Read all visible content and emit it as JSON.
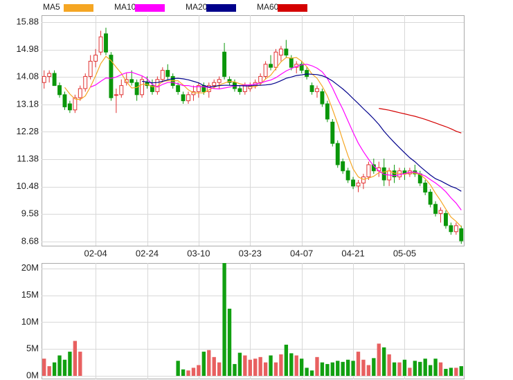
{
  "chart_data": [
    {
      "type": "candlestick",
      "categories": [
        null,
        null,
        null,
        null,
        null,
        null,
        null,
        null,
        null,
        null,
        "02-04",
        null,
        null,
        null,
        null,
        null,
        null,
        null,
        null,
        null,
        "02-24",
        null,
        null,
        null,
        null,
        null,
        null,
        null,
        null,
        null,
        "03-10",
        null,
        null,
        null,
        null,
        null,
        null,
        null,
        null,
        null,
        "03-23",
        null,
        null,
        null,
        null,
        null,
        null,
        null,
        null,
        null,
        "04-07",
        null,
        null,
        null,
        null,
        null,
        null,
        null,
        null,
        null,
        "04-21",
        null,
        null,
        null,
        null,
        null,
        null,
        null,
        null,
        null,
        "05-05",
        null,
        null,
        null,
        null,
        null,
        null,
        null,
        null,
        null,
        null,
        null
      ],
      "open": [
        13.9,
        14.1,
        14.2,
        13.8,
        13.5,
        13.2,
        13.0,
        13.4,
        13.7,
        14.1,
        14.6,
        14.9,
        15.5,
        14.8,
        13.5,
        13.5,
        13.9,
        14.0,
        13.9,
        13.5,
        13.9,
        13.8,
        13.6,
        14.0,
        14.3,
        14.1,
        13.8,
        13.5,
        13.3,
        13.5,
        13.6,
        13.8,
        13.6,
        13.8,
        13.9,
        14.9,
        14.0,
        13.9,
        13.7,
        13.6,
        13.7,
        13.8,
        13.9,
        14.1,
        14.5,
        14.4,
        14.8,
        15.0,
        14.7,
        14.4,
        14.5,
        14.3,
        13.8,
        13.6,
        13.6,
        13.2,
        12.6,
        11.9,
        11.3,
        11.0,
        10.7,
        10.5,
        10.6,
        10.8,
        11.2,
        11.0,
        11.1,
        10.7,
        11.0,
        10.8,
        11.0,
        10.9,
        11.0,
        10.9,
        10.6,
        10.3,
        9.9,
        9.6,
        9.6,
        9.2,
        9.0,
        9.1
      ],
      "high": [
        14.3,
        14.3,
        14.3,
        13.9,
        13.6,
        13.3,
        13.5,
        13.8,
        14.2,
        14.8,
        15.0,
        15.6,
        15.7,
        14.9,
        13.7,
        14.0,
        14.2,
        14.3,
        14.0,
        14.1,
        14.1,
        14.0,
        14.1,
        14.4,
        14.5,
        14.2,
        13.9,
        13.6,
        13.6,
        13.8,
        13.9,
        13.9,
        13.9,
        14.0,
        14.1,
        15.2,
        14.1,
        14.0,
        13.8,
        13.9,
        13.9,
        14.0,
        14.2,
        14.6,
        14.8,
        15.0,
        15.1,
        15.3,
        14.8,
        14.6,
        14.6,
        14.4,
        13.9,
        13.8,
        13.7,
        13.3,
        12.7,
        12.0,
        11.4,
        11.1,
        10.8,
        10.7,
        10.9,
        11.3,
        11.4,
        11.3,
        11.4,
        11.1,
        11.2,
        11.1,
        11.1,
        11.1,
        11.2,
        11.0,
        10.7,
        10.4,
        10.0,
        9.8,
        9.7,
        9.3,
        9.3,
        9.2
      ],
      "low": [
        13.7,
        13.9,
        13.8,
        13.4,
        13.0,
        12.9,
        12.9,
        13.3,
        13.6,
        14.0,
        14.4,
        14.8,
        14.8,
        13.3,
        12.9,
        13.4,
        13.8,
        13.8,
        13.3,
        13.4,
        13.7,
        13.5,
        13.5,
        13.9,
        14.0,
        13.7,
        13.5,
        13.2,
        13.2,
        13.3,
        13.4,
        13.5,
        13.4,
        13.7,
        13.7,
        14.0,
        13.8,
        13.6,
        13.5,
        13.5,
        13.6,
        13.7,
        13.8,
        14.0,
        14.3,
        14.3,
        14.6,
        14.7,
        14.3,
        14.2,
        14.2,
        14.0,
        13.5,
        13.4,
        13.1,
        12.6,
        11.8,
        11.1,
        10.9,
        10.6,
        10.4,
        10.3,
        10.4,
        10.7,
        10.9,
        10.8,
        10.5,
        10.5,
        10.6,
        10.7,
        10.7,
        10.8,
        10.8,
        10.5,
        10.2,
        9.8,
        9.5,
        9.3,
        9.1,
        8.9,
        8.9,
        8.6
      ],
      "close": [
        14.1,
        14.2,
        13.8,
        13.5,
        13.1,
        13.0,
        13.4,
        13.7,
        14.1,
        14.6,
        14.8,
        15.4,
        14.9,
        13.4,
        13.5,
        13.8,
        14.0,
        13.9,
        13.5,
        14.0,
        13.8,
        13.6,
        14.0,
        14.3,
        14.1,
        13.8,
        13.6,
        13.3,
        13.5,
        13.6,
        13.8,
        13.6,
        13.8,
        13.9,
        14.0,
        14.1,
        13.9,
        13.7,
        13.6,
        13.8,
        13.8,
        13.9,
        14.1,
        14.5,
        14.4,
        14.9,
        15.0,
        14.8,
        14.4,
        14.5,
        14.3,
        14.1,
        13.6,
        13.7,
        13.2,
        12.7,
        11.9,
        11.2,
        11.0,
        10.7,
        10.5,
        10.6,
        10.8,
        11.2,
        11.0,
        11.1,
        10.7,
        11.0,
        10.8,
        11.0,
        10.9,
        11.0,
        10.9,
        10.6,
        10.3,
        9.9,
        9.6,
        9.7,
        9.2,
        9.0,
        9.2,
        8.7
      ],
      "up_color": "#e03030",
      "down_color": "#0a960a",
      "series": [
        {
          "name": "MA5",
          "color": "#f5a623",
          "values": [
            null,
            null,
            null,
            null,
            13.74,
            13.52,
            13.36,
            13.34,
            13.46,
            13.76,
            14.12,
            14.52,
            14.76,
            14.62,
            14.4,
            14.2,
            13.92,
            13.72,
            13.74,
            13.84,
            13.84,
            13.76,
            13.78,
            13.94,
            13.96,
            13.96,
            13.96,
            13.82,
            13.66,
            13.56,
            13.56,
            13.56,
            13.66,
            13.74,
            13.82,
            13.88,
            13.94,
            13.92,
            13.86,
            13.82,
            13.76,
            13.76,
            13.84,
            14.02,
            14.14,
            14.36,
            14.58,
            14.72,
            14.7,
            14.72,
            14.6,
            14.42,
            14.18,
            14.04,
            13.78,
            13.46,
            13.02,
            12.54,
            12.0,
            11.5,
            11.06,
            10.8,
            10.72,
            10.76,
            10.82,
            10.94,
            10.96,
            11.0,
            10.92,
            10.92,
            10.88,
            10.94,
            10.92,
            10.88,
            10.74,
            10.54,
            10.26,
            10.02,
            9.74,
            9.48,
            9.34,
            9.16
          ]
        },
        {
          "name": "MA10",
          "color": "#ff00ff",
          "values": [
            null,
            null,
            null,
            null,
            null,
            null,
            null,
            null,
            null,
            13.75,
            13.82,
            13.94,
            14.05,
            14.04,
            14.08,
            14.16,
            14.22,
            14.24,
            14.18,
            14.12,
            14.02,
            13.84,
            13.75,
            13.84,
            13.9,
            13.9,
            13.86,
            13.8,
            13.8,
            13.76,
            13.76,
            13.76,
            13.74,
            13.7,
            13.69,
            13.72,
            13.75,
            13.79,
            13.8,
            13.82,
            13.82,
            13.85,
            13.88,
            13.94,
            13.98,
            14.06,
            14.17,
            14.28,
            14.36,
            14.43,
            14.48,
            14.5,
            14.45,
            14.37,
            14.25,
            14.03,
            13.72,
            13.36,
            13.02,
            12.64,
            12.26,
            11.91,
            11.63,
            11.38,
            11.16,
            11.0,
            10.88,
            10.86,
            10.84,
            10.87,
            10.91,
            10.95,
            10.96,
            10.9,
            10.83,
            10.71,
            10.6,
            10.47,
            10.31,
            10.11,
            9.94,
            9.71
          ]
        },
        {
          "name": "MA20",
          "color": "#00008b",
          "values": [
            null,
            null,
            null,
            null,
            null,
            null,
            null,
            null,
            null,
            null,
            null,
            null,
            null,
            null,
            null,
            null,
            null,
            null,
            null,
            13.94,
            13.92,
            13.89,
            13.9,
            13.94,
            13.99,
            14.03,
            14.04,
            14.02,
            13.99,
            13.94,
            13.89,
            13.8,
            13.75,
            13.77,
            13.8,
            13.81,
            13.81,
            13.8,
            13.8,
            13.79,
            13.79,
            13.81,
            13.81,
            13.82,
            13.84,
            13.89,
            13.96,
            14.04,
            14.08,
            14.13,
            14.15,
            14.18,
            14.17,
            14.16,
            14.12,
            14.05,
            13.95,
            13.82,
            13.69,
            13.54,
            13.37,
            13.21,
            13.04,
            12.88,
            12.71,
            12.52,
            12.3,
            12.11,
            11.93,
            11.76,
            11.59,
            11.43,
            11.3,
            11.14,
            11.0,
            10.86,
            10.74,
            10.67,
            10.58,
            10.49,
            10.43,
            10.33
          ]
        },
        {
          "name": "MA60",
          "color": "#d40000",
          "values": [
            null,
            null,
            null,
            null,
            null,
            null,
            null,
            null,
            null,
            null,
            null,
            null,
            null,
            null,
            null,
            null,
            null,
            null,
            null,
            null,
            null,
            null,
            null,
            null,
            null,
            null,
            null,
            null,
            null,
            null,
            null,
            null,
            null,
            null,
            null,
            null,
            null,
            null,
            null,
            null,
            null,
            null,
            null,
            null,
            null,
            null,
            null,
            null,
            null,
            null,
            null,
            null,
            null,
            null,
            null,
            null,
            null,
            null,
            null,
            null,
            null,
            null,
            null,
            null,
            null,
            13.05,
            13.02,
            12.99,
            12.95,
            12.91,
            12.87,
            12.83,
            12.79,
            12.74,
            12.69,
            12.63,
            12.57,
            12.51,
            12.45,
            12.38,
            12.3,
            12.24
          ]
        }
      ],
      "ylim": [
        8.54,
        16.11
      ],
      "yticks": [
        15.88,
        14.98,
        14.08,
        13.18,
        12.28,
        11.38,
        10.48,
        9.58,
        8.68
      ],
      "grid": true
    },
    {
      "type": "bar",
      "values": [
        3.2,
        1.8,
        2.5,
        3.8,
        3.0,
        4.5,
        6.5,
        4.5,
        null,
        null,
        null,
        null,
        null,
        null,
        null,
        null,
        null,
        null,
        null,
        null,
        null,
        null,
        null,
        null,
        null,
        null,
        2.8,
        1.2,
        1.0,
        1.5,
        2.0,
        4.5,
        4.8,
        3.5,
        2.5,
        21.0,
        12.5,
        2.2,
        4.3,
        3.8,
        3.0,
        3.2,
        3.5,
        2.5,
        3.8,
        2.5,
        4.0,
        5.8,
        4.2,
        3.8,
        3.2,
        1.5,
        1.0,
        3.5,
        2.5,
        2.2,
        2.5,
        2.8,
        2.6,
        3.0,
        2.8,
        4.5,
        3.0,
        2.0,
        3.3,
        6.0,
        5.3,
        4.0,
        2.5,
        2.5,
        3.0,
        1.5,
        2.8,
        2.6,
        3.2,
        2.0,
        3.2,
        2.5,
        1.3,
        1.5,
        1.5,
        1.8
      ],
      "ylim": [
        0,
        21.0
      ],
      "yticks": [
        {
          "value": 20,
          "label": "20M"
        },
        {
          "value": 15,
          "label": "15M"
        },
        {
          "value": 10,
          "label": "10M"
        },
        {
          "value": 5,
          "label": "5M"
        },
        {
          "value": 0,
          "label": "0M"
        }
      ],
      "grid": true
    }
  ]
}
